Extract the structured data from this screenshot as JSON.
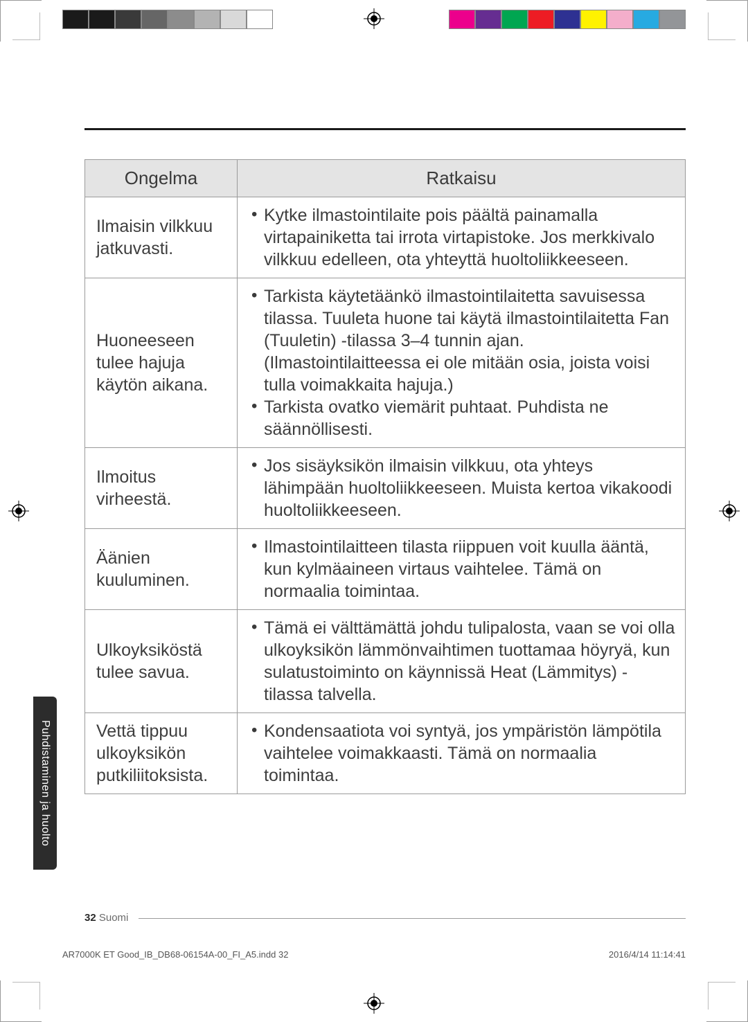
{
  "print": {
    "left_swatches": [
      "#1a1a1a",
      "#1a1a1a",
      "#3a3a3a",
      "#666666",
      "#8c8c8c",
      "#b3b3b3",
      "#d9d9d9",
      "#ffffff"
    ],
    "right_swatches": [
      "#ec008c",
      "#662d91",
      "#00a651",
      "#ed1c24",
      "#2e3192",
      "#fff200",
      "#f4aecb",
      "#27aae1",
      "#939598"
    ]
  },
  "rule_color": "#1a1a1a",
  "side_tab": "Puhdistaminen ja huolto",
  "table": {
    "headers": {
      "problem": "Ongelma",
      "solution": "Ratkaisu"
    },
    "rows": [
      {
        "problem": "Ilmaisin vilkkuu jatkuvasti.",
        "solutions": [
          "Kytke ilmastointilaite pois päältä painamalla virtapainiketta tai irrota virtapistoke. Jos merkkivalo vilkkuu edelleen, ota yhteyttä huoltoliikkeeseen."
        ]
      },
      {
        "problem": "Huoneeseen tulee hajuja käytön aikana.",
        "solutions": [
          "Tarkista käytetäänkö ilmastointilaitetta savuisessa tilassa. Tuuleta huone tai käytä ilmastointilaitetta Fan (Tuuletin) -tilassa 3–4 tunnin ajan. (Ilmastointilaitteessa ei ole mitään osia, joista voisi tulla voimakkaita hajuja.)",
          "Tarkista ovatko viemärit puhtaat. Puhdista ne säännöllisesti."
        ]
      },
      {
        "problem": "Ilmoitus virheestä.",
        "solutions": [
          "Jos sisäyksikön ilmaisin vilkkuu, ota yhteys lähimpään huoltoliikkeeseen. Muista kertoa vikakoodi huoltoliikkeeseen."
        ]
      },
      {
        "problem": "Äänien kuuluminen.",
        "solutions": [
          "Ilmastointilaitteen tilasta riippuen voit kuulla ääntä, kun kylmäaineen virtaus vaihtelee. Tämä on normaalia toimintaa."
        ]
      },
      {
        "problem": "Ulkoyksiköstä tulee savua.",
        "solutions": [
          "Tämä ei välttämättä johdu tulipalosta, vaan se voi olla ulkoyksikön lämmönvaihtimen tuottamaa höyryä, kun sulatustoiminto on käynnissä Heat (Lämmitys) -tilassa talvella."
        ]
      },
      {
        "problem": "Vettä tippuu ulkoyksikön putkiliitoksista.",
        "solutions": [
          "Kondensaatiota voi syntyä, jos ympäristön lämpötila vaihtelee voimakkaasti. Tämä on normaalia toimintaa."
        ]
      }
    ]
  },
  "page_number": "32",
  "page_lang": "Suomi",
  "footer": {
    "file": "AR7000K ET Good_IB_DB68-06154A-00_FI_A5.indd   32",
    "timestamp": "2016/4/14   11:14:41"
  }
}
